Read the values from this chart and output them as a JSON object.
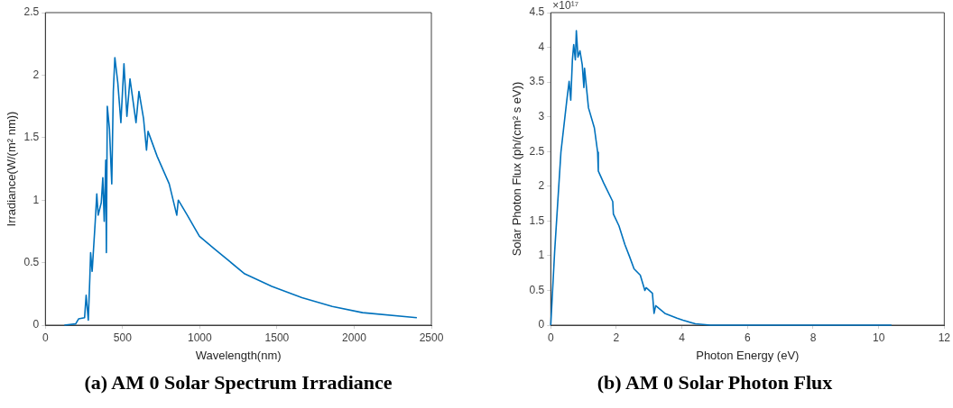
{
  "chart_data": [
    {
      "type": "line",
      "title": "(a) AM 0 Solar Spectrum Irradiance",
      "xlabel": "Wavelength(nm)",
      "ylabel": "Irradiance(W/(m² nm))",
      "color": "#0072bd",
      "x": [
        123,
        196,
        215,
        254,
        264,
        278,
        288,
        293,
        303,
        323,
        333,
        342,
        362,
        372,
        381,
        391,
        395,
        401,
        415,
        430,
        440,
        450,
        469,
        489,
        509,
        528,
        548,
        567,
        587,
        606,
        636,
        655,
        665,
        724,
        802,
        851,
        861,
        919,
        998,
        1095,
        1193,
        1291,
        1467,
        1662,
        1858,
        2054,
        2406
      ],
      "values": [
        0,
        0.01,
        0.05,
        0.06,
        0.24,
        0.04,
        0.38,
        0.58,
        0.43,
        0.83,
        1.05,
        0.88,
        0.98,
        1.18,
        0.83,
        1.32,
        0.58,
        1.75,
        1.57,
        1.13,
        1.87,
        2.14,
        1.94,
        1.62,
        2.09,
        1.67,
        1.97,
        1.8,
        1.62,
        1.87,
        1.65,
        1.4,
        1.55,
        1.35,
        1.13,
        0.88,
        1,
        0.88,
        0.71,
        0.61,
        0.51,
        0.41,
        0.31,
        0.22,
        0.15,
        0.1,
        0.06
      ],
      "xlim": [
        0,
        2500
      ],
      "xticks": [
        0,
        500,
        1000,
        1500,
        2000,
        2500
      ],
      "ylim": [
        0,
        2.5
      ],
      "yticks": [
        0,
        0.5,
        1,
        1.5,
        2,
        2.5
      ]
    },
    {
      "type": "line",
      "title": "(b) AM 0 Solar Photon Flux",
      "xlabel": "Photon Energy (eV)",
      "ylabel": "Solar Photon Flux (ph/(cm² s eV))",
      "color": "#0072bd",
      "annotations": [
        "×10¹⁷"
      ],
      "x": [
        0,
        0.12,
        0.31,
        0.49,
        0.56,
        0.61,
        0.66,
        0.7,
        0.75,
        0.78,
        0.83,
        0.89,
        0.96,
        1.01,
        1.03,
        1.15,
        1.33,
        1.43,
        1.45,
        1.61,
        1.89,
        1.91,
        2.08,
        2.26,
        2.4,
        2.54,
        2.73,
        2.87,
        2.91,
        3.1,
        3.15,
        3.2,
        3.48,
        3.85,
        4.03,
        4.41,
        4.87,
        10.39
      ],
      "values": [
        0,
        1.07,
        2.49,
        3.24,
        3.51,
        3.24,
        3.82,
        4.04,
        3.82,
        4.24,
        3.86,
        3.95,
        3.75,
        3.42,
        3.7,
        3.13,
        2.84,
        2.49,
        2.22,
        2.05,
        1.78,
        1.6,
        1.43,
        1.16,
        0.99,
        0.81,
        0.72,
        0.5,
        0.54,
        0.46,
        0.17,
        0.28,
        0.17,
        0.1,
        0.07,
        0.02,
        0,
        0
      ],
      "xlim": [
        0,
        12
      ],
      "xticks": [
        0,
        2,
        4,
        6,
        8,
        10,
        12
      ],
      "ylim": [
        0,
        4.5
      ],
      "yticks": [
        0,
        0.5,
        1,
        1.5,
        2,
        2.5,
        3,
        3.5,
        4,
        4.5
      ]
    }
  ]
}
